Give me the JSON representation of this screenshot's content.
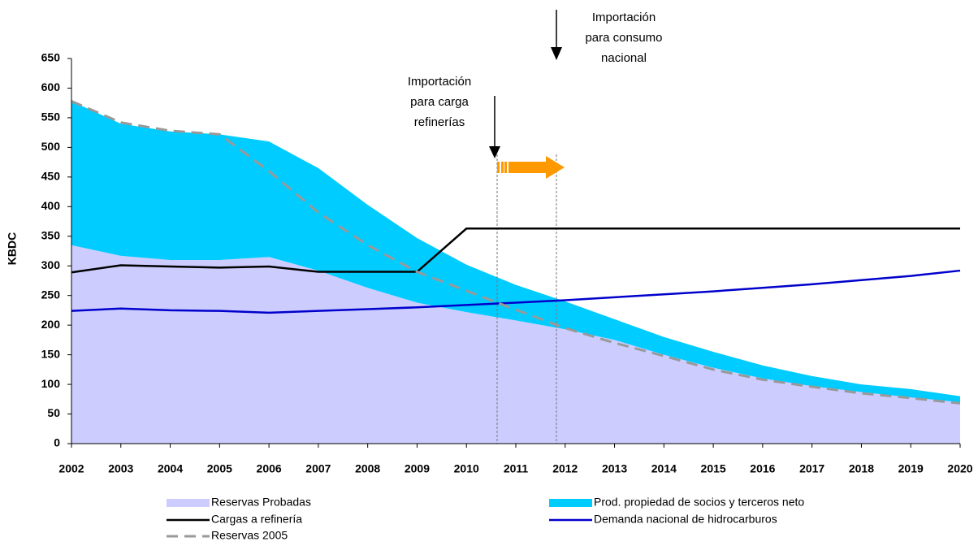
{
  "chart_data": {
    "type": "area",
    "ylabel": "KBDC",
    "x": [
      2002,
      2003,
      2004,
      2005,
      2006,
      2007,
      2008,
      2009,
      2010,
      2011,
      2012,
      2013,
      2014,
      2015,
      2016,
      2017,
      2018,
      2019,
      2020
    ],
    "xlim": [
      2002,
      2020
    ],
    "xticks": [
      2002,
      2003,
      2004,
      2005,
      2006,
      2007,
      2008,
      2009,
      2010,
      2011,
      2012,
      2013,
      2014,
      2015,
      2016,
      2017,
      2018,
      2019,
      2020
    ],
    "ylim": [
      0,
      650
    ],
    "yticks": [
      0,
      50,
      100,
      150,
      200,
      250,
      300,
      350,
      400,
      450,
      500,
      550,
      600,
      650
    ],
    "grid": false,
    "series": [
      {
        "name": "Reservas Probadas",
        "kind": "area",
        "stacked": true,
        "color": "#ccccff",
        "values": [
          335,
          317,
          310,
          310,
          315,
          292,
          263,
          238,
          222,
          208,
          193,
          175,
          150,
          128,
          110,
          97,
          87,
          78,
          70
        ]
      },
      {
        "name": "Prod. propiedad de socios y terceros neto",
        "kind": "area",
        "stacked": true,
        "color": "#00ccff",
        "values": [
          243,
          223,
          217,
          212,
          195,
          173,
          140,
          109,
          80,
          60,
          47,
          35,
          30,
          27,
          22,
          17,
          13,
          14,
          10
        ]
      },
      {
        "name": "Cargas a refinería",
        "kind": "line",
        "dashed": false,
        "color": "#000000",
        "values": [
          289,
          301,
          299,
          297,
          299,
          290,
          290,
          290,
          363,
          363,
          363,
          363,
          363,
          363,
          363,
          363,
          363,
          363,
          363
        ]
      },
      {
        "name": "Demanda nacional de hidrocarburos",
        "kind": "line",
        "dashed": false,
        "color": "#0000cc",
        "values": [
          224,
          228,
          225,
          224,
          221,
          224,
          227,
          230,
          234,
          238,
          242,
          247,
          252,
          257,
          263,
          269,
          276,
          283,
          292
        ]
      },
      {
        "name": "Reservas 2005",
        "kind": "line",
        "dashed": true,
        "color": "#999999",
        "values": [
          578,
          542,
          528,
          522,
          460,
          390,
          335,
          290,
          258,
          226,
          195,
          170,
          148,
          125,
          108,
          96,
          85,
          77,
          68
        ]
      }
    ],
    "annotations": [
      {
        "lines": [
          "Importación",
          "para carga",
          "refinerías"
        ]
      },
      {
        "lines": [
          "Importación",
          "para consumo",
          "nacional"
        ]
      }
    ]
  }
}
